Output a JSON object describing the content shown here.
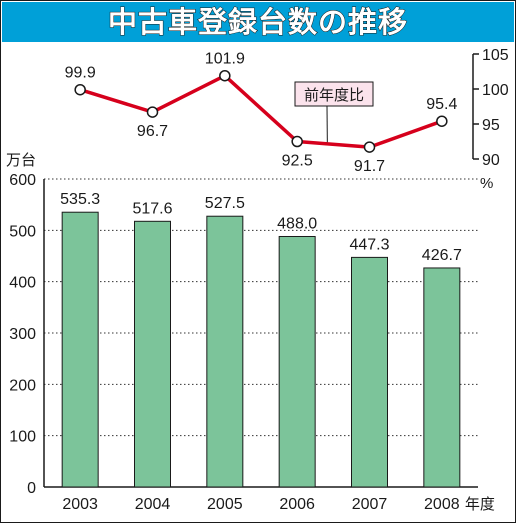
{
  "title": "中古車登録台数の推移",
  "chart_data": [
    {
      "type": "line",
      "label": "前年度比",
      "unit": "%",
      "x": [
        "2003",
        "2004",
        "2005",
        "2006",
        "2007",
        "2008"
      ],
      "values": [
        99.9,
        96.7,
        101.9,
        92.5,
        91.7,
        95.4
      ],
      "value_labels": [
        "99.9",
        "96.7",
        "101.9",
        "92.5",
        "91.7",
        "95.4"
      ],
      "ylim": [
        90,
        105
      ],
      "yticks": [
        "105",
        "100",
        "95",
        "90"
      ],
      "axis_side": "right",
      "color": "#d6001c"
    },
    {
      "type": "bar",
      "unit": "万台",
      "xlabel_suffix": "年度",
      "categories": [
        "2003",
        "2004",
        "2005",
        "2006",
        "2007",
        "2008"
      ],
      "values": [
        535.3,
        517.6,
        527.5,
        488.0,
        447.3,
        426.7
      ],
      "value_labels": [
        "535.3",
        "517.6",
        "527.5",
        "488.0",
        "447.3",
        "426.7"
      ],
      "ylim": [
        0,
        600
      ],
      "yticks": [
        "600",
        "500",
        "400",
        "300",
        "200",
        "100",
        "0"
      ],
      "grid": "dotted horizontal",
      "color": "#7cc49a"
    }
  ]
}
